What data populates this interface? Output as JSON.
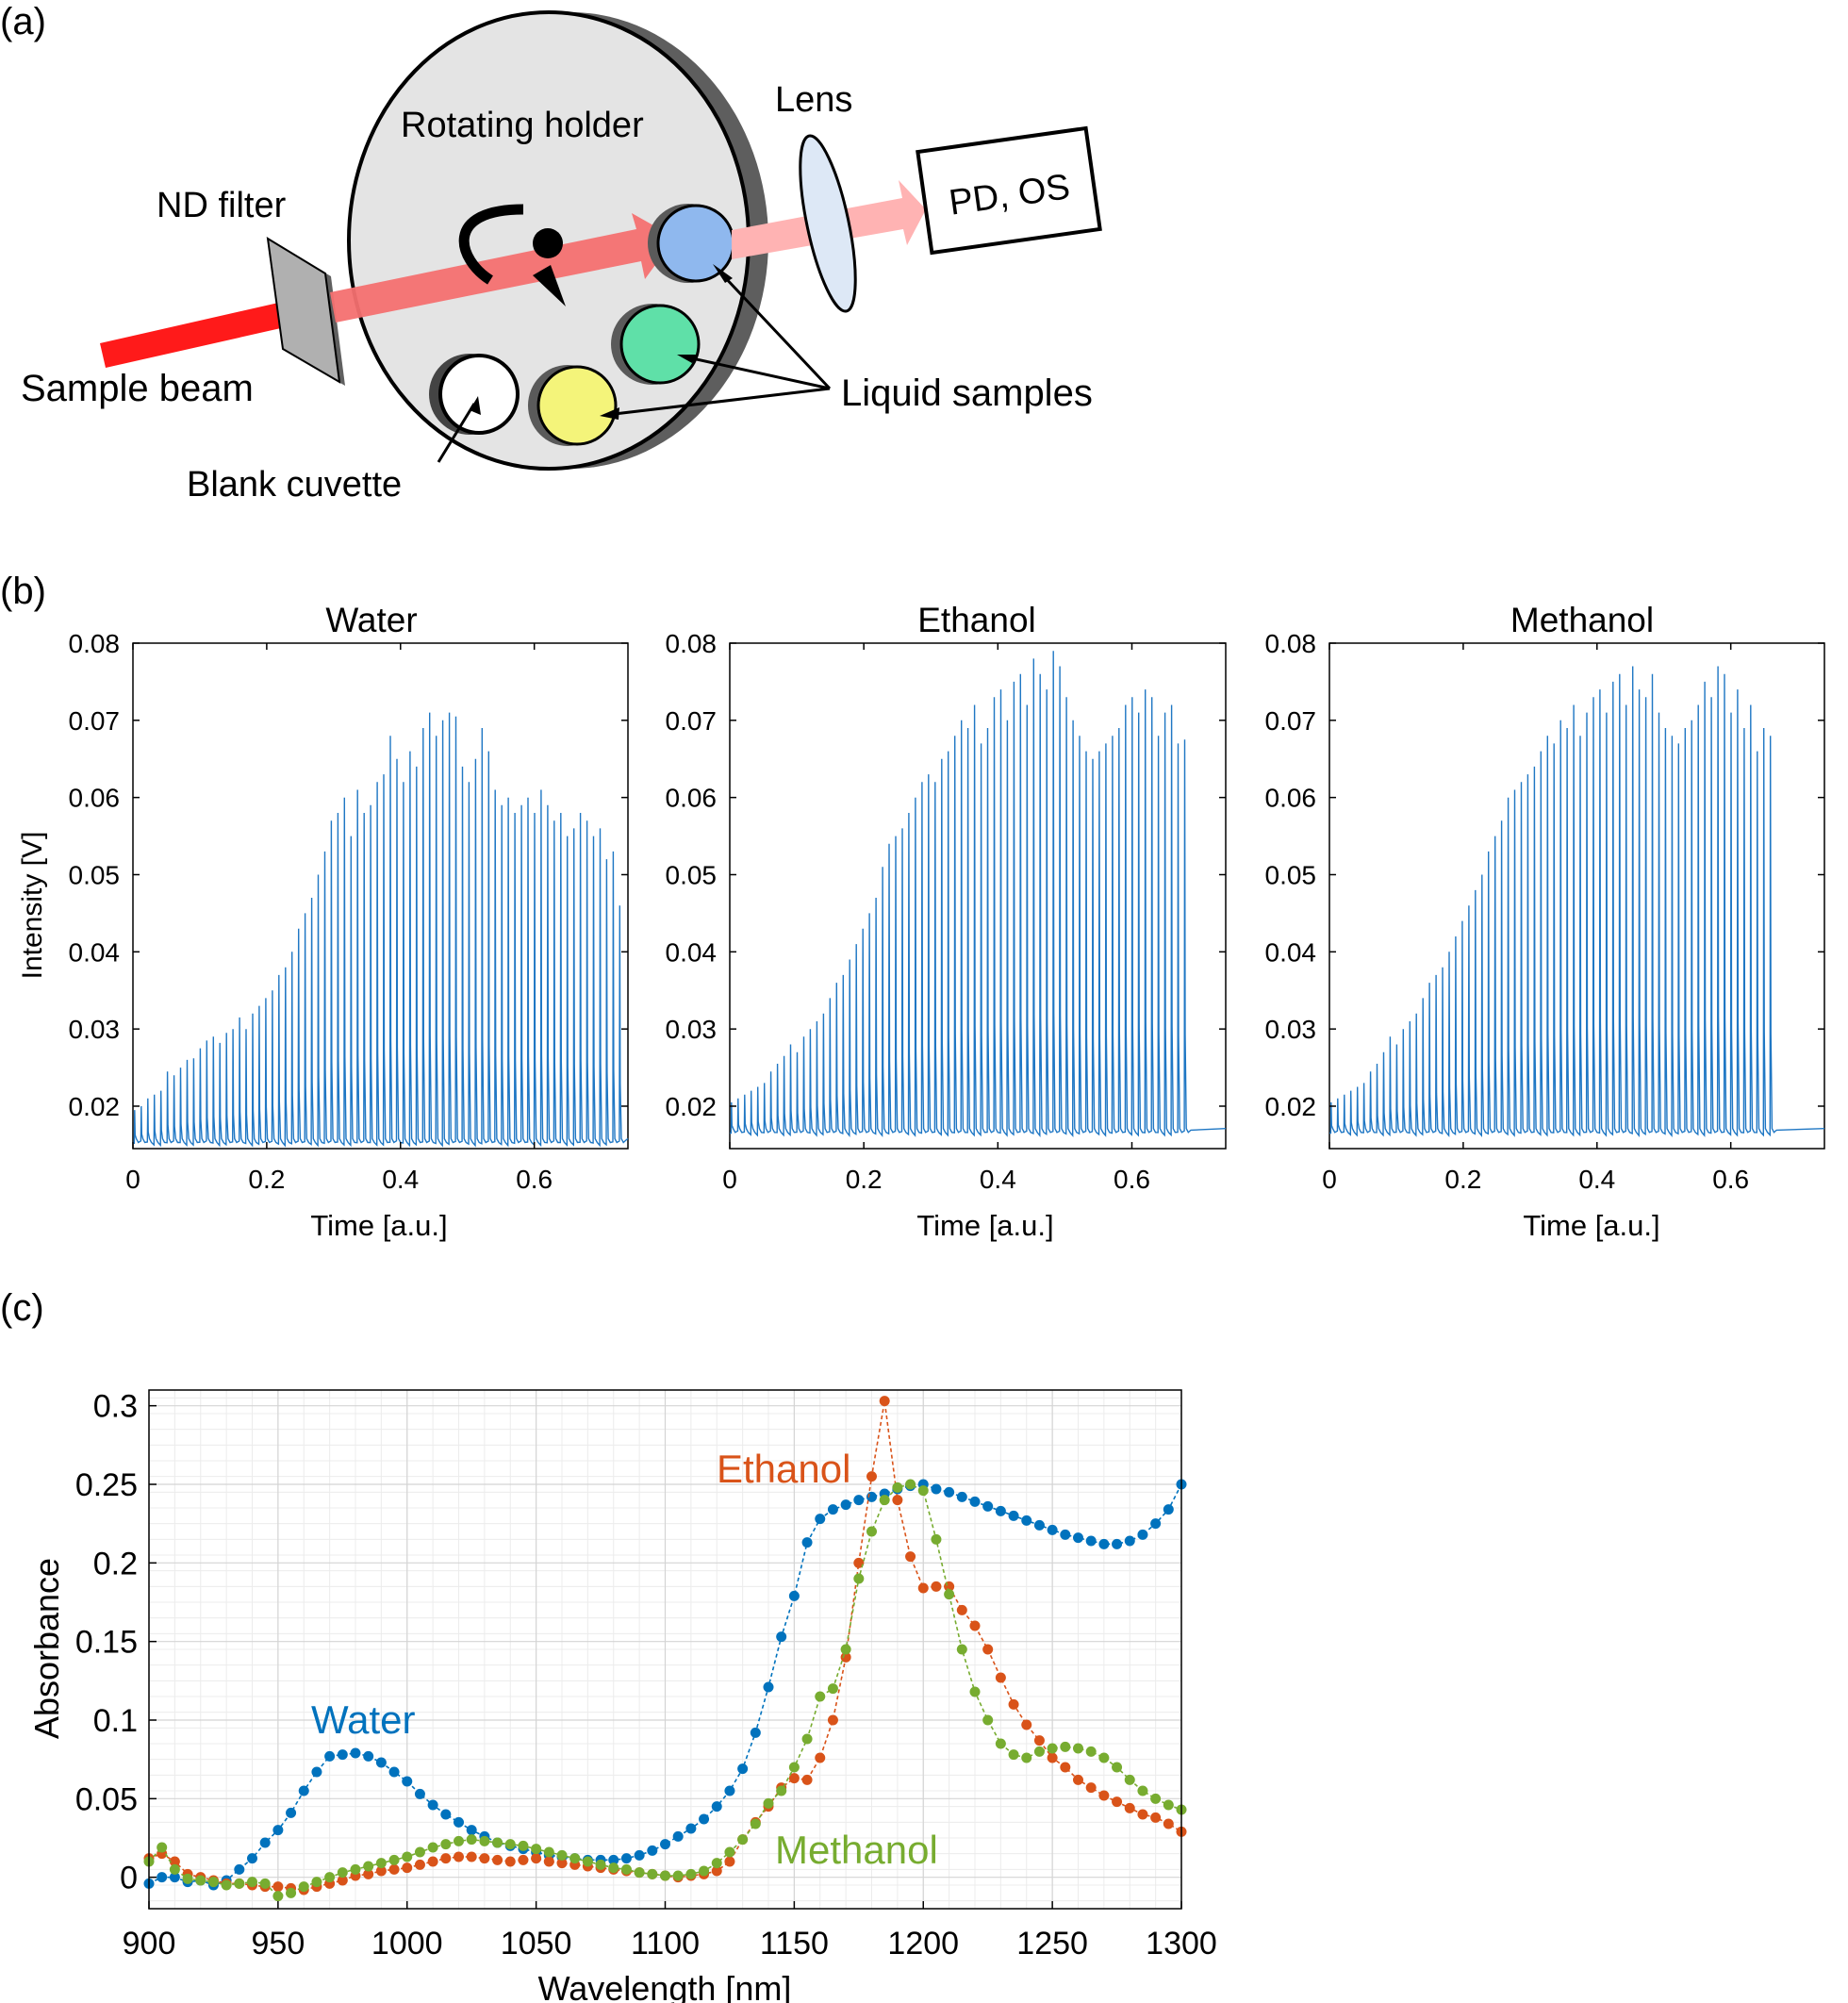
{
  "panel_a": {
    "label": "(a)",
    "labels": {
      "rotating_holder": "Rotating holder",
      "lens": "Lens",
      "detector": "PD, OS",
      "nd_filter": "ND filter",
      "sample_beam": "Sample beam",
      "liquid_samples": "Liquid samples",
      "blank_cuvette": "Blank cuvette"
    },
    "colors": {
      "beam": "#ff1a1a",
      "beam_transmitted": "#ffb3b3",
      "cuvette_blue": "#8fb8ee",
      "cuvette_green": "#5fe0a8",
      "cuvette_yellow": "#f4f47a",
      "holder": "#e4e4e4"
    }
  },
  "panel_b": {
    "label": "(b)",
    "ylabel": "Intensity [V]",
    "xlabel": "Time [a.u.]",
    "line_color": "#1f77c4"
  },
  "panel_c": {
    "label": "(c)"
  },
  "chart_data": [
    {
      "type": "line",
      "title": "Water",
      "xlabel": "Time [a.u.]",
      "ylabel": "Intensity [V]",
      "xlim": [
        0,
        0.74
      ],
      "ylim": [
        0.0145,
        0.08
      ],
      "xticks": [
        "0",
        "0.2",
        "0.4",
        "0.6"
      ],
      "yticks": [
        "0.02",
        "0.03",
        "0.04",
        "0.05",
        "0.06",
        "0.07",
        "0.08"
      ],
      "baseline": 0.0152,
      "pulse_interval": 0.0098,
      "pulse_start": 0.002,
      "peaks": [
        0.0195,
        0.02,
        0.021,
        0.0215,
        0.022,
        0.0245,
        0.024,
        0.025,
        0.026,
        0.0262,
        0.0275,
        0.0285,
        0.029,
        0.0282,
        0.0295,
        0.03,
        0.0315,
        0.03,
        0.032,
        0.033,
        0.034,
        0.035,
        0.037,
        0.038,
        0.04,
        0.043,
        0.045,
        0.047,
        0.05,
        0.053,
        0.057,
        0.058,
        0.06,
        0.055,
        0.061,
        0.058,
        0.059,
        0.062,
        0.063,
        0.068,
        0.065,
        0.062,
        0.066,
        0.064,
        0.069,
        0.071,
        0.068,
        0.07,
        0.071,
        0.0705,
        0.064,
        0.062,
        0.065,
        0.069,
        0.066,
        0.061,
        0.059,
        0.06,
        0.058,
        0.059,
        0.06,
        0.058,
        0.061,
        0.059,
        0.057,
        0.058,
        0.055,
        0.056,
        0.058,
        0.057,
        0.055,
        0.056,
        0.052,
        0.053,
        0.046
      ]
    },
    {
      "type": "line",
      "title": "Ethanol",
      "xlabel": "Time [a.u.]",
      "ylabel": "",
      "xlim": [
        0,
        0.74
      ],
      "ylim": [
        0.0145,
        0.08
      ],
      "xticks": [
        "0",
        "0.2",
        "0.4",
        "0.6"
      ],
      "yticks": [
        "0.02",
        "0.03",
        "0.04",
        "0.05",
        "0.06",
        "0.07",
        "0.08"
      ],
      "baseline": 0.0165,
      "pulse_interval": 0.0098,
      "pulse_start": 0.002,
      "peaks": [
        0.0205,
        0.021,
        0.0215,
        0.022,
        0.0225,
        0.023,
        0.0245,
        0.0255,
        0.0265,
        0.028,
        0.027,
        0.029,
        0.03,
        0.031,
        0.032,
        0.034,
        0.036,
        0.037,
        0.039,
        0.041,
        0.043,
        0.045,
        0.047,
        0.051,
        0.054,
        0.055,
        0.056,
        0.058,
        0.06,
        0.062,
        0.063,
        0.062,
        0.065,
        0.066,
        0.068,
        0.07,
        0.069,
        0.072,
        0.067,
        0.069,
        0.073,
        0.074,
        0.07,
        0.075,
        0.076,
        0.072,
        0.078,
        0.076,
        0.074,
        0.079,
        0.077,
        0.073,
        0.07,
        0.068,
        0.066,
        0.065,
        0.066,
        0.067,
        0.068,
        0.069,
        0.072,
        0.073,
        0.071,
        0.074,
        0.073,
        0.068,
        0.071,
        0.072,
        0.067,
        0.0675
      ]
    },
    {
      "type": "line",
      "title": "Methanol",
      "xlabel": "Time [a.u.]",
      "ylabel": "",
      "xlim": [
        0,
        0.74
      ],
      "ylim": [
        0.0145,
        0.08
      ],
      "xticks": [
        "0",
        "0.2",
        "0.4",
        "0.6"
      ],
      "yticks": [
        "0.02",
        "0.03",
        "0.04",
        "0.05",
        "0.06",
        "0.07",
        "0.08"
      ],
      "baseline": 0.0165,
      "pulse_interval": 0.0098,
      "pulse_start": 0.002,
      "peaks": [
        0.0205,
        0.021,
        0.0215,
        0.022,
        0.0225,
        0.023,
        0.0245,
        0.0255,
        0.027,
        0.029,
        0.028,
        0.03,
        0.031,
        0.032,
        0.034,
        0.036,
        0.037,
        0.038,
        0.04,
        0.042,
        0.044,
        0.046,
        0.048,
        0.05,
        0.053,
        0.055,
        0.057,
        0.06,
        0.061,
        0.062,
        0.063,
        0.064,
        0.066,
        0.068,
        0.067,
        0.07,
        0.069,
        0.072,
        0.068,
        0.071,
        0.073,
        0.074,
        0.071,
        0.075,
        0.076,
        0.072,
        0.077,
        0.074,
        0.073,
        0.076,
        0.071,
        0.069,
        0.068,
        0.067,
        0.069,
        0.07,
        0.072,
        0.075,
        0.073,
        0.077,
        0.076,
        0.071,
        0.074,
        0.069,
        0.072,
        0.066,
        0.069,
        0.068
      ]
    },
    {
      "type": "line",
      "title": "",
      "xlabel": "Wavelength [nm]",
      "ylabel": "Absorbance",
      "xlim": [
        900,
        1300
      ],
      "ylim": [
        -0.02,
        0.31
      ],
      "xticks": [
        "900",
        "950",
        "1000",
        "1050",
        "1100",
        "1150",
        "1200",
        "1250",
        "1300"
      ],
      "yticks": [
        "0",
        "0.05",
        "0.1",
        "0.15",
        "0.2",
        "0.25",
        "0.3"
      ],
      "grid": true,
      "x": [
        900,
        905,
        910,
        915,
        920,
        925,
        930,
        935,
        940,
        945,
        950,
        955,
        960,
        965,
        970,
        975,
        980,
        985,
        990,
        995,
        1000,
        1005,
        1010,
        1015,
        1020,
        1025,
        1030,
        1035,
        1040,
        1045,
        1050,
        1055,
        1060,
        1065,
        1070,
        1075,
        1080,
        1085,
        1090,
        1095,
        1100,
        1105,
        1110,
        1115,
        1120,
        1125,
        1130,
        1135,
        1140,
        1145,
        1150,
        1155,
        1160,
        1165,
        1170,
        1175,
        1180,
        1185,
        1190,
        1195,
        1200,
        1205,
        1210,
        1215,
        1220,
        1225,
        1230,
        1235,
        1240,
        1245,
        1250,
        1255,
        1260,
        1265,
        1270,
        1275,
        1280,
        1285,
        1290,
        1295,
        1300
      ],
      "series": [
        {
          "name": "Water",
          "color": "#0072bd",
          "values": [
            -0.004,
            0.0,
            0.0,
            -0.003,
            -0.002,
            -0.005,
            -0.002,
            0.005,
            0.012,
            0.022,
            0.03,
            0.041,
            0.055,
            0.067,
            0.077,
            0.078,
            0.079,
            0.077,
            0.073,
            0.067,
            0.061,
            0.053,
            0.046,
            0.04,
            0.035,
            0.03,
            0.026,
            0.022,
            0.02,
            0.018,
            0.016,
            0.014,
            0.013,
            0.012,
            0.011,
            0.011,
            0.011,
            0.012,
            0.014,
            0.017,
            0.021,
            0.026,
            0.031,
            0.037,
            0.045,
            0.055,
            0.069,
            0.092,
            0.121,
            0.153,
            0.179,
            0.213,
            0.228,
            0.234,
            0.237,
            0.24,
            0.242,
            0.244,
            0.247,
            0.249,
            0.25,
            0.247,
            0.245,
            0.242,
            0.239,
            0.236,
            0.233,
            0.23,
            0.227,
            0.224,
            0.221,
            0.218,
            0.216,
            0.214,
            0.212,
            0.212,
            0.214,
            0.218,
            0.225,
            0.234,
            0.25
          ]
        },
        {
          "name": "Ethanol",
          "color": "#d95319",
          "values": [
            0.012,
            0.015,
            0.01,
            0.002,
            0.0,
            -0.002,
            -0.004,
            -0.004,
            -0.005,
            -0.006,
            -0.006,
            -0.007,
            -0.008,
            -0.006,
            -0.004,
            -0.002,
            0.001,
            0.002,
            0.004,
            0.005,
            0.006,
            0.008,
            0.01,
            0.012,
            0.013,
            0.013,
            0.012,
            0.011,
            0.01,
            0.011,
            0.012,
            0.01,
            0.009,
            0.008,
            0.007,
            0.006,
            0.005,
            0.004,
            0.003,
            0.002,
            0.001,
            0.0,
            0.001,
            0.002,
            0.004,
            0.01,
            0.024,
            0.035,
            0.045,
            0.057,
            0.063,
            0.062,
            0.076,
            0.1,
            0.14,
            0.2,
            0.255,
            0.303,
            0.24,
            0.204,
            0.184,
            0.185,
            0.185,
            0.17,
            0.16,
            0.145,
            0.127,
            0.11,
            0.097,
            0.087,
            0.076,
            0.07,
            0.062,
            0.057,
            0.052,
            0.048,
            0.044,
            0.04,
            0.038,
            0.034,
            0.029
          ]
        },
        {
          "name": "Methanol",
          "color": "#77ac30",
          "values": [
            0.01,
            0.019,
            0.005,
            -0.001,
            -0.002,
            -0.003,
            -0.005,
            -0.004,
            -0.003,
            -0.004,
            -0.012,
            -0.01,
            -0.006,
            -0.003,
            0.0,
            0.003,
            0.005,
            0.007,
            0.009,
            0.011,
            0.013,
            0.016,
            0.019,
            0.021,
            0.023,
            0.024,
            0.023,
            0.022,
            0.021,
            0.02,
            0.018,
            0.016,
            0.014,
            0.012,
            0.01,
            0.008,
            0.006,
            0.005,
            0.003,
            0.002,
            0.001,
            0.001,
            0.002,
            0.004,
            0.009,
            0.016,
            0.024,
            0.034,
            0.047,
            0.055,
            0.07,
            0.088,
            0.115,
            0.12,
            0.145,
            0.19,
            0.22,
            0.24,
            0.248,
            0.25,
            0.246,
            0.215,
            0.18,
            0.145,
            0.118,
            0.1,
            0.085,
            0.078,
            0.076,
            0.08,
            0.082,
            0.083,
            0.082,
            0.08,
            0.076,
            0.07,
            0.062,
            0.055,
            0.05,
            0.046,
            0.043
          ]
        }
      ]
    }
  ]
}
